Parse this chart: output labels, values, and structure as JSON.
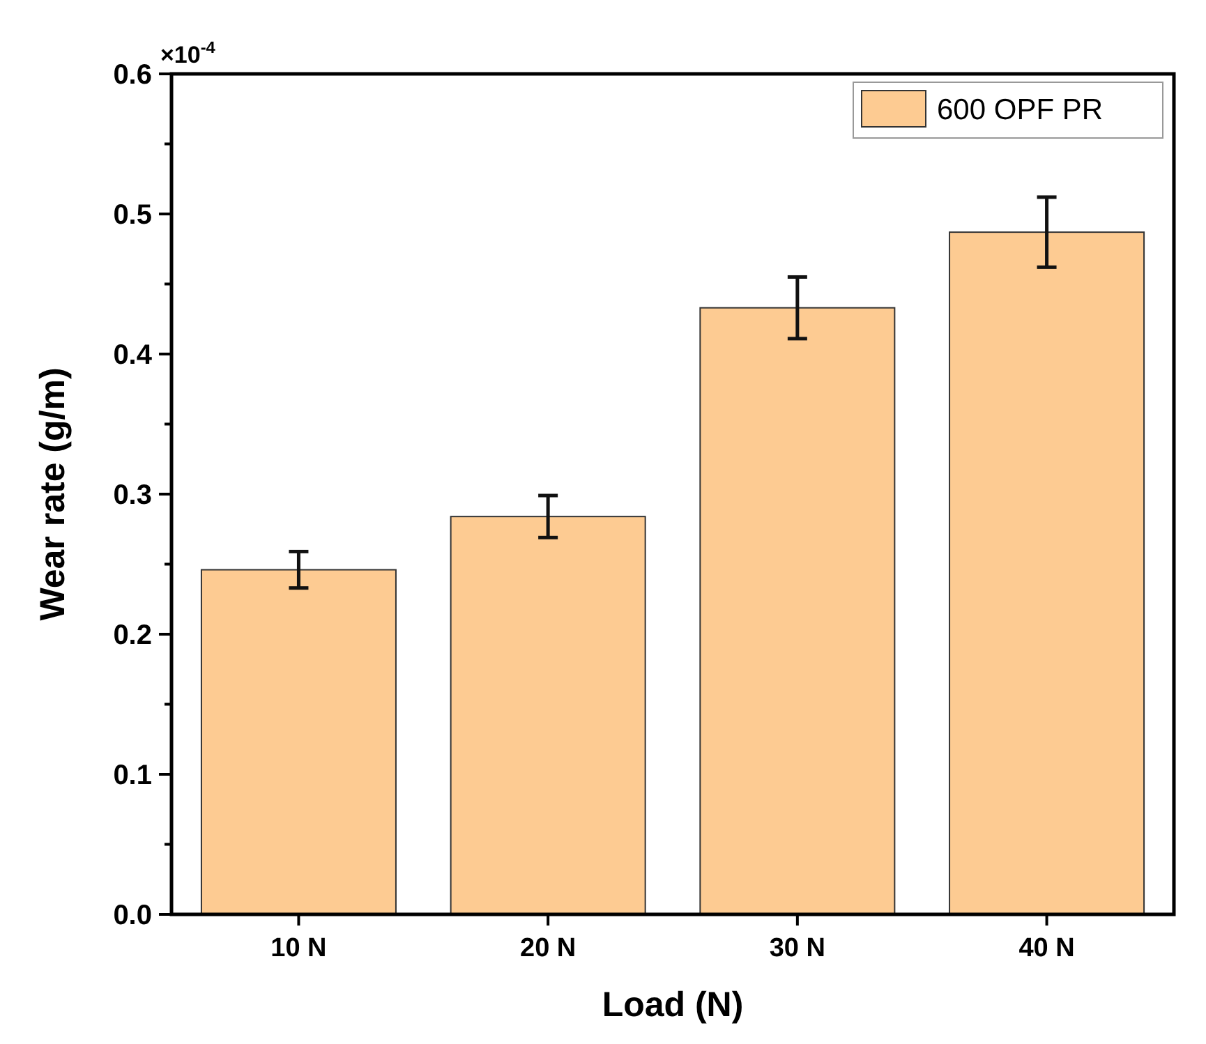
{
  "chart_data": {
    "type": "bar",
    "xlabel": "Load (N)",
    "ylabel": "Wear rate (g/m)",
    "categories": [
      "10 N",
      "20 N",
      "30 N",
      "40 N"
    ],
    "series": [
      {
        "name": "600 OPF PR",
        "color": "#fdcb92",
        "values": [
          0.246,
          0.284,
          0.433,
          0.487
        ],
        "errors": [
          0.013,
          0.015,
          0.022,
          0.025
        ]
      }
    ],
    "ylim": [
      0,
      0.6
    ],
    "yticks": [
      {
        "value": 0,
        "label": "0.0"
      },
      {
        "value": 0.05,
        "label": null
      },
      {
        "value": 0.1,
        "label": "0.1"
      },
      {
        "value": 0.15,
        "label": null
      },
      {
        "value": 0.2,
        "label": "0.2"
      },
      {
        "value": 0.25,
        "label": null
      },
      {
        "value": 0.3,
        "label": "0.3"
      },
      {
        "value": 0.35,
        "label": null
      },
      {
        "value": 0.4,
        "label": "0.4"
      },
      {
        "value": 0.45,
        "label": null
      },
      {
        "value": 0.5,
        "label": "0.5"
      },
      {
        "value": 0.55,
        "label": null
      },
      {
        "value": 0.6,
        "label": "0.6"
      }
    ],
    "annotations": [
      "×10$^{-4}$"
    ],
    "legend": "top right",
    "grid": false
  }
}
